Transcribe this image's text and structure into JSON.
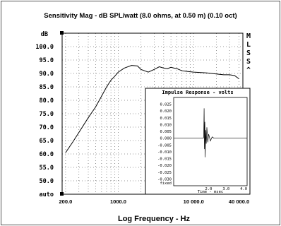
{
  "chart_data": [
    {
      "type": "line",
      "title": "Sensitivity Mag - dB SPL/watt (8.0 ohms, at 0.50 m) (0.10 oct)",
      "xlabel": "Log Frequency - Hz",
      "ylabel_unit": "dB",
      "x_scale": "log",
      "xlim": [
        180,
        45000
      ],
      "ylim": [
        45,
        105
      ],
      "x_ticks": [
        200,
        1000,
        10000,
        40000
      ],
      "x_tick_labels": [
        "200.0",
        "1000.0",
        "10 000.0",
        "40 000.0"
      ],
      "y_ticks": [
        100,
        95,
        90,
        85,
        80,
        75,
        70,
        65,
        60,
        55,
        50
      ],
      "y_tick_labels": [
        "100.0",
        "95.0",
        "90.0",
        "85.0",
        "80.0",
        "75.0",
        "70.0",
        "65.0",
        "60.0",
        "55.0",
        "50.0"
      ],
      "y_bottom_label": "auto",
      "grid": true,
      "side_labels": [
        "M",
        "L",
        "S",
        "S",
        "^"
      ],
      "series": [
        {
          "x": [
            200,
            250,
            300,
            400,
            500,
            600,
            700,
            800,
            900,
            1000,
            1200,
            1500,
            1800,
            2000,
            2500,
            3000,
            3500,
            4000,
            4500,
            5000,
            5500,
            6000,
            7000,
            8000,
            10000,
            15000,
            20000,
            25000,
            30000,
            35000,
            40000
          ],
          "values": [
            60.5,
            64.5,
            68,
            73.5,
            77.5,
            81.5,
            85,
            87.5,
            89,
            90.5,
            92,
            93,
            92.8,
            91.5,
            90.5,
            91.5,
            92.5,
            92,
            91.8,
            92.3,
            92,
            91.8,
            91,
            90.8,
            90.5,
            90.2,
            89.8,
            89.5,
            89.5,
            89.2,
            88
          ]
        }
      ]
    },
    {
      "type": "line",
      "title": "Impulse Response - volts",
      "xlabel": "Time - msec",
      "xlim": [
        0,
        4.2
      ],
      "ylim": [
        -0.035,
        0.03
      ],
      "x_ticks": [
        2.0,
        3.0,
        4.0
      ],
      "x_tick_labels": [
        "2.0",
        "3.0",
        "4.0"
      ],
      "y_ticks": [
        0.025,
        0.02,
        0.015,
        0.01,
        0.005,
        0.0,
        -0.005,
        -0.01,
        -0.015,
        -0.02,
        -0.025,
        -0.03
      ],
      "y_tick_labels": [
        "0.025",
        "0.020",
        "0.015",
        "0.010",
        "0.005",
        "0.000",
        "-0.005",
        "-0.010",
        "-0.015",
        "-0.020",
        "-0.025",
        "-0.030"
      ],
      "y_bottom_label": "fixed",
      "series": [
        {
          "x": [
            0.0,
            1.5,
            1.7,
            1.72,
            1.74,
            1.76,
            1.78,
            1.8,
            1.83,
            1.86,
            1.9,
            1.95,
            2.0,
            2.1,
            2.2,
            2.3,
            2.5,
            3.0,
            3.5,
            4.2
          ],
          "values": [
            0.0,
            0.0,
            0.0,
            0.002,
            0.022,
            -0.008,
            0.012,
            -0.014,
            0.006,
            -0.004,
            0.008,
            -0.003,
            0.003,
            -0.002,
            0.001,
            0.0,
            0.0,
            0.0,
            0.0,
            0.0
          ]
        }
      ]
    }
  ]
}
